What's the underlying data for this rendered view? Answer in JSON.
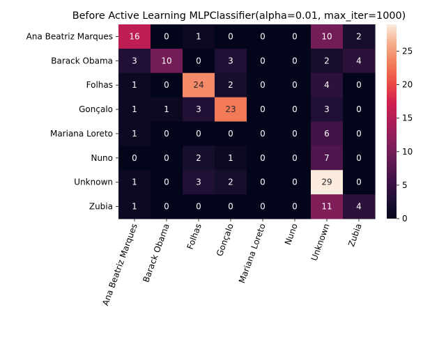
{
  "chart_data": {
    "type": "heatmap",
    "title": "Before Active Learning MLPClassifier(alpha=0.01, max_iter=1000)",
    "xlabel": "",
    "ylabel": "",
    "row_labels": [
      "Ana Beatriz Marques",
      "Barack Obama",
      "Folhas",
      "Gonçalo",
      "Mariana Loreto",
      "Nuno",
      "Unknown",
      "Zubia"
    ],
    "col_labels": [
      "Ana Beatriz Marques",
      "Barack Obama",
      "Folhas",
      "Gonçalo",
      "Mariana Loreto",
      "Nuno",
      "Unknown",
      "Zubia"
    ],
    "values": [
      [
        16,
        0,
        1,
        0,
        0,
        0,
        10,
        2
      ],
      [
        3,
        10,
        0,
        3,
        0,
        0,
        2,
        4
      ],
      [
        1,
        0,
        24,
        2,
        0,
        0,
        4,
        0
      ],
      [
        1,
        1,
        3,
        23,
        0,
        0,
        3,
        0
      ],
      [
        1,
        0,
        0,
        0,
        0,
        0,
        6,
        0
      ],
      [
        0,
        0,
        2,
        1,
        0,
        0,
        7,
        0
      ],
      [
        1,
        0,
        3,
        2,
        0,
        0,
        29,
        0
      ],
      [
        1,
        0,
        0,
        0,
        0,
        0,
        11,
        4
      ]
    ],
    "colormap": "rocket",
    "vmin": 0,
    "vmax": 29,
    "colorbar_ticks": [
      0,
      5,
      10,
      15,
      20,
      25
    ],
    "legend": "colorbar-right",
    "grid": false
  }
}
